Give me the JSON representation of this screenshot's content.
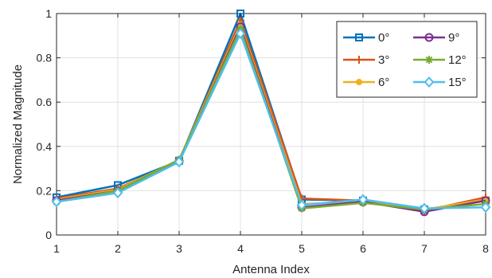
{
  "chart_data": {
    "type": "line",
    "title": "",
    "xlabel": "Antenna Index",
    "ylabel": "Normalized Magnitude",
    "x": [
      1,
      2,
      3,
      4,
      5,
      6,
      7,
      8
    ],
    "xlim": [
      1,
      8
    ],
    "ylim": [
      0,
      1
    ],
    "xticks": [
      "1",
      "2",
      "3",
      "4",
      "5",
      "6",
      "7",
      "8"
    ],
    "yticks": [
      "0",
      "0.2",
      "0.4",
      "0.6",
      "0.8",
      "1"
    ],
    "grid": true,
    "legend": {
      "placement": "top-right",
      "columns": 2
    },
    "series": [
      {
        "name": "0°",
        "color": "#0072BD",
        "marker": "square",
        "values": [
          0.17,
          0.225,
          0.335,
          1.0,
          0.16,
          0.155,
          0.115,
          0.155
        ]
      },
      {
        "name": "3°",
        "color": "#D95319",
        "marker": "plus",
        "values": [
          0.165,
          0.21,
          0.335,
          0.97,
          0.165,
          0.155,
          0.11,
          0.17
        ]
      },
      {
        "name": "6°",
        "color": "#EDB120",
        "marker": "dot",
        "values": [
          0.16,
          0.205,
          0.34,
          0.95,
          0.14,
          0.15,
          0.115,
          0.16
        ]
      },
      {
        "name": "9°",
        "color": "#7E2F8E",
        "marker": "circle",
        "values": [
          0.155,
          0.2,
          0.335,
          0.94,
          0.125,
          0.15,
          0.105,
          0.155
        ]
      },
      {
        "name": "12°",
        "color": "#77AC30",
        "marker": "asterisk",
        "values": [
          0.15,
          0.2,
          0.34,
          0.93,
          0.12,
          0.145,
          0.115,
          0.14
        ]
      },
      {
        "name": "15°",
        "color": "#4DBEEE",
        "marker": "diamond",
        "values": [
          0.15,
          0.19,
          0.33,
          0.91,
          0.135,
          0.16,
          0.12,
          0.125
        ]
      }
    ]
  }
}
